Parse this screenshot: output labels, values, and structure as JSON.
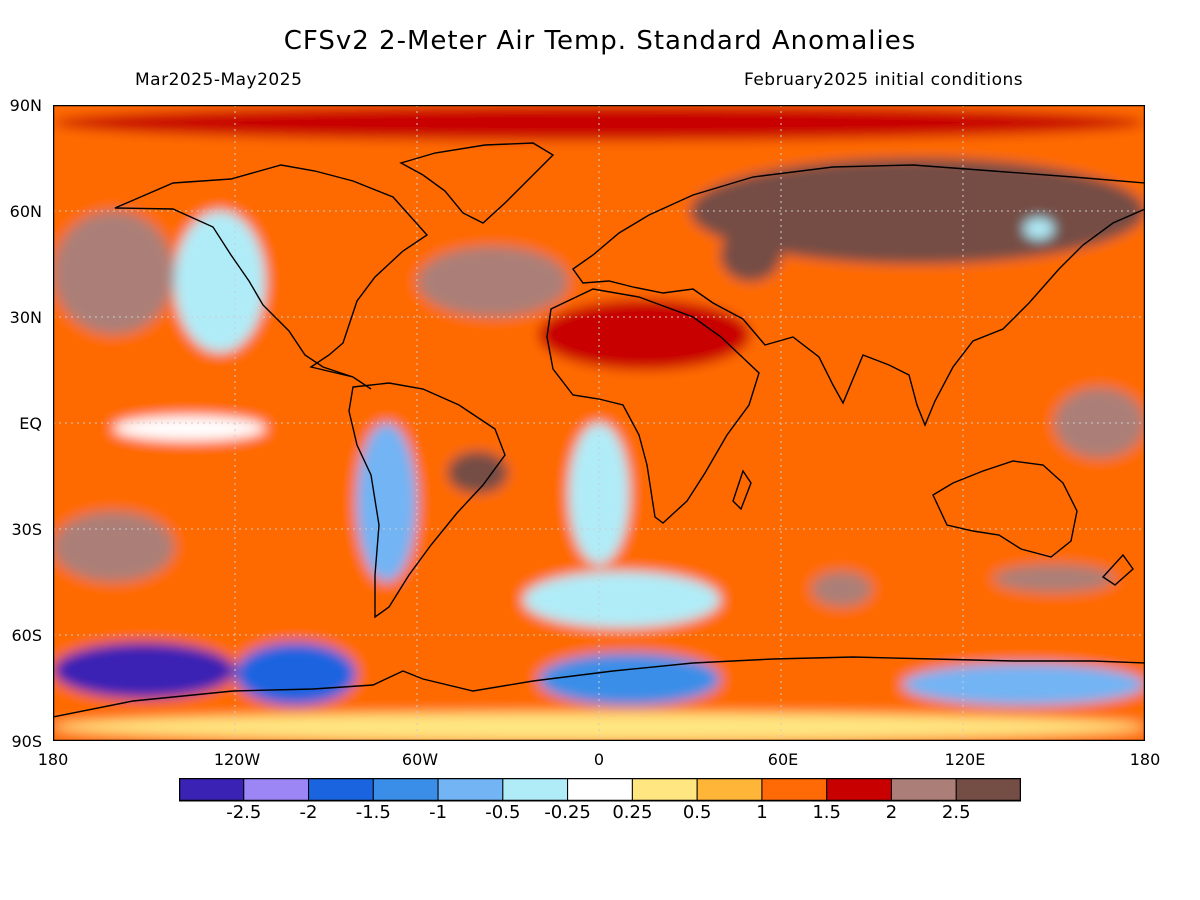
{
  "title": "CFSv2 2-Meter Air Temp. Standard Anomalies",
  "period": "Mar2025-May2025",
  "init": "February2025 initial conditions",
  "lat_labels": [
    "90N",
    "60N",
    "30N",
    "EQ",
    "30S",
    "60S",
    "90S"
  ],
  "lon_labels": [
    "180",
    "120W",
    "60W",
    "0",
    "60E",
    "120E",
    "180"
  ],
  "colorbar": {
    "colors": [
      "#3a22b4",
      "#9c85f5",
      "#1a64e0",
      "#3a8ee8",
      "#72b4f4",
      "#b0ecf8",
      "#ffffff",
      "#ffe680",
      "#ffb638",
      "#ff6a06",
      "#c80000",
      "#ab7f77",
      "#744d44"
    ],
    "labels": [
      "-2.5",
      "-2",
      "-1.5",
      "-1",
      "-0.5",
      "-0.25",
      "0.25",
      "0.5",
      "1",
      "1.5",
      "2",
      "2.5"
    ]
  },
  "chart_data": {
    "type": "heatmap",
    "title": "CFSv2 2-Meter Air Temp. Standard Anomalies",
    "x_range": [
      -180,
      180
    ],
    "y_range": [
      -90,
      90
    ],
    "legend_placement": "bottom",
    "levels": [
      -2.5,
      -2,
      -1.5,
      -1,
      -0.5,
      -0.25,
      0.25,
      0.5,
      1,
      1.5,
      2,
      2.5
    ],
    "regions": [
      {
        "lon": [
          -180,
          180
        ],
        "lat": [
          -90,
          90
        ],
        "value": 1.2
      },
      {
        "lon": [
          -180,
          -120
        ],
        "lat": [
          -78,
          -62
        ],
        "value": -2.6
      },
      {
        "lon": [
          -120,
          -80
        ],
        "lat": [
          -80,
          -62
        ],
        "value": -1.6
      },
      {
        "lon": [
          -20,
          40
        ],
        "lat": [
          -80,
          -65
        ],
        "value": -1.2
      },
      {
        "lon": [
          100,
          180
        ],
        "lat": [
          -80,
          -68
        ],
        "value": -0.7
      },
      {
        "lon": [
          -180,
          180
        ],
        "lat": [
          -90,
          -82
        ],
        "value": 0.4
      },
      {
        "lon": [
          -160,
          -110
        ],
        "lat": [
          -5,
          2
        ],
        "value": 0.0
      },
      {
        "lon": [
          -140,
          -110
        ],
        "lat": [
          20,
          60
        ],
        "value": -0.4
      },
      {
        "lon": [
          -80,
          -60
        ],
        "lat": [
          -45,
          0
        ],
        "value": -0.6
      },
      {
        "lon": [
          -10,
          10
        ],
        "lat": [
          -40,
          0
        ],
        "value": -0.3
      },
      {
        "lon": [
          -25,
          40
        ],
        "lat": [
          -58,
          -42
        ],
        "value": -0.5
      },
      {
        "lon": [
          60,
          180
        ],
        "lat": [
          -55,
          -40
        ],
        "value": 1.2
      },
      {
        "lon": [
          -180,
          -140
        ],
        "lat": [
          25,
          60
        ],
        "value": 2.3
      },
      {
        "lon": [
          -180,
          -140
        ],
        "lat": [
          -45,
          -25
        ],
        "value": 2.1
      },
      {
        "lon": [
          -50,
          -30
        ],
        "lat": [
          -20,
          -8
        ],
        "value": 2.6
      },
      {
        "lon": [
          -60,
          -10
        ],
        "lat": [
          30,
          50
        ],
        "value": 2.2
      },
      {
        "lon": [
          30,
          180
        ],
        "lat": [
          45,
          75
        ],
        "value": 2.5
      },
      {
        "lon": [
          -180,
          180
        ],
        "lat": [
          80,
          90
        ],
        "value": 1.8
      },
      {
        "lon": [
          -20,
          50
        ],
        "lat": [
          15,
          35
        ],
        "value": 1.7
      },
      {
        "lon": [
          150,
          180
        ],
        "lat": [
          -10,
          10
        ],
        "value": 2.3
      },
      {
        "lon": [
          40,
          60
        ],
        "lat": [
          40,
          55
        ],
        "value": 2.6
      },
      {
        "lon": [
          70,
          90
        ],
        "lat": [
          -52,
          -42
        ],
        "value": 2.3
      },
      {
        "lon": [
          130,
          170
        ],
        "lat": [
          -48,
          -40
        ],
        "value": 2.3
      },
      {
        "lon": [
          140,
          150
        ],
        "lat": [
          52,
          58
        ],
        "value": -0.4
      }
    ]
  }
}
